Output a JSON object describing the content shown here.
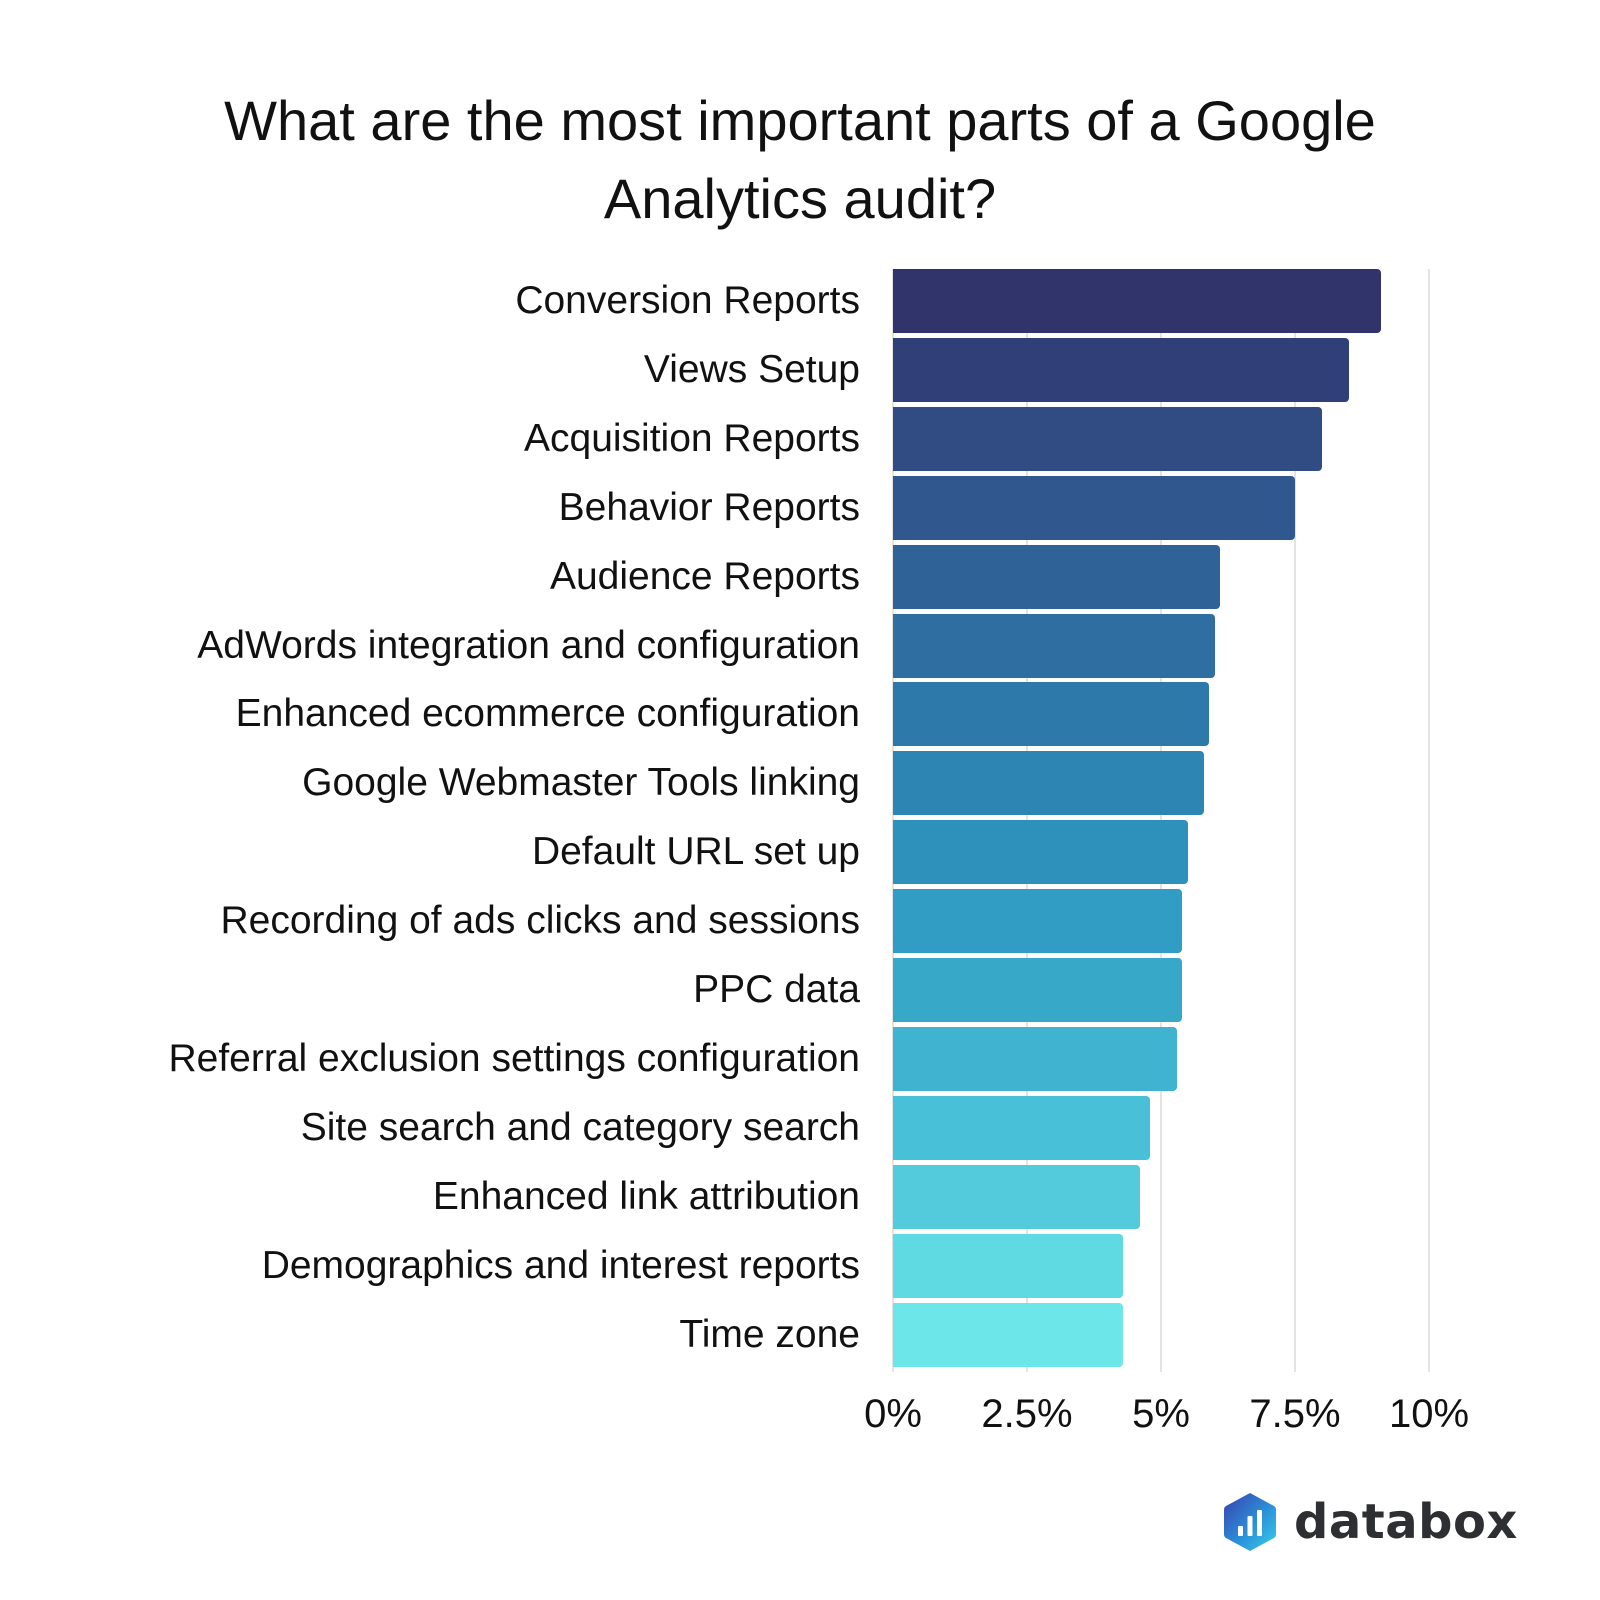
{
  "title": {
    "line1": "What are the most important parts of a Google",
    "line2": "Analytics audit?"
  },
  "chart_data": {
    "type": "bar",
    "orientation": "horizontal",
    "title": "What are the most important parts of a Google Analytics audit?",
    "xlabel": "",
    "ylabel": "",
    "xlim": [
      0,
      10
    ],
    "x_ticks": [
      "0%",
      "2.5%",
      "5%",
      "7.5%",
      "10%"
    ],
    "grid": true,
    "legend": null,
    "categories": [
      "Conversion Reports",
      "Views Setup",
      "Acquisition Reports",
      "Behavior Reports",
      "Audience Reports",
      "AdWords integration and configuration",
      "Enhanced ecommerce configuration",
      "Google Webmaster Tools linking",
      "Default URL set up",
      "Recording of ads clicks and sessions",
      "PPC data",
      "Referral exclusion settings configuration",
      "Site search and category search",
      "Enhanced link attribution",
      "Demographics and interest reports",
      "Time zone"
    ],
    "values": [
      9.1,
      8.5,
      8.0,
      7.5,
      6.1,
      6.0,
      5.9,
      5.8,
      5.5,
      5.4,
      5.4,
      5.3,
      4.8,
      4.6,
      4.3,
      4.3
    ],
    "unit": "%",
    "colors": [
      "#30346b",
      "#313f78",
      "#314c83",
      "#30588e",
      "#2f6397",
      "#2e6ea0",
      "#2d79a9",
      "#2d85b3",
      "#2e91bb",
      "#329dc4",
      "#38a8c9",
      "#3fb3cf",
      "#48c0d8",
      "#53cbdd",
      "#5fd9e2",
      "#6ce6e8"
    ]
  },
  "axis": {
    "ticks": [
      {
        "label": "0%",
        "value": 0
      },
      {
        "label": "2.5%",
        "value": 2.5
      },
      {
        "label": "5%",
        "value": 5
      },
      {
        "label": "7.5%",
        "value": 7.5
      },
      {
        "label": "10%",
        "value": 10
      }
    ]
  },
  "branding": {
    "logo_text": "databox",
    "logo_icon": "databox-hexagon-bars-icon",
    "logo_colors": [
      "#3a4fb5",
      "#2aa6e0",
      "#36c9e6"
    ]
  }
}
